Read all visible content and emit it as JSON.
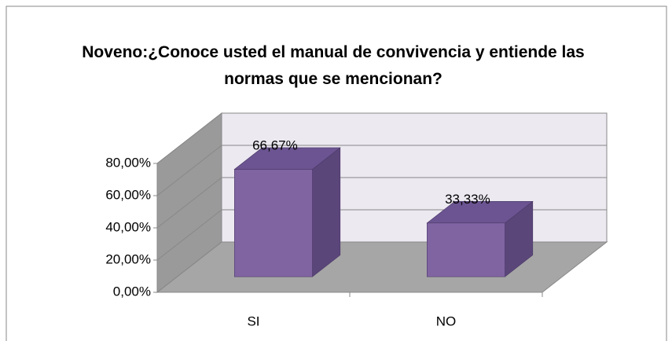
{
  "chart_data": {
    "type": "bar3d",
    "title": "Noveno:¿Conoce usted el manual de convivencia y entiende las normas que se mencionan?",
    "categories": [
      "SI",
      "NO"
    ],
    "values": [
      66.67,
      33.33
    ],
    "value_labels": [
      "66,67%",
      "33,33%"
    ],
    "color": "#8064a2",
    "ylim": [
      0,
      80
    ],
    "yticks": [
      {
        "value": 0,
        "label": "0,00%"
      },
      {
        "value": 20,
        "label": "20,00%"
      },
      {
        "value": 40,
        "label": "40,00%"
      },
      {
        "value": 60,
        "label": "60,00%"
      },
      {
        "value": 80,
        "label": "80,00%"
      }
    ],
    "grid": true
  }
}
